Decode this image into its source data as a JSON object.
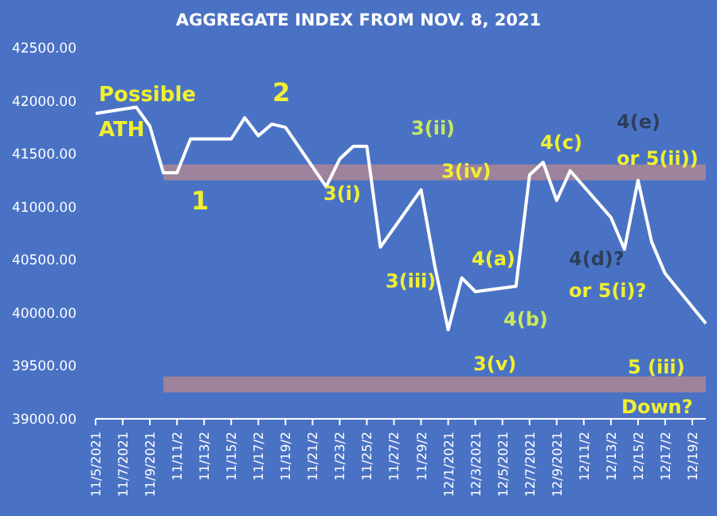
{
  "chart_data": {
    "type": "line",
    "title": "AGGREGATE INDEX FROM NOV. 8, 2021",
    "x": [
      "2021-11-05",
      "2021-11-08",
      "2021-11-09",
      "2021-11-10",
      "2021-11-11",
      "2021-11-12",
      "2021-11-15",
      "2021-11-16",
      "2021-11-17",
      "2021-11-18",
      "2021-11-19",
      "2021-11-22",
      "2021-11-23",
      "2021-11-24",
      "2021-11-25",
      "2021-11-26",
      "2021-11-29",
      "2021-11-30",
      "2021-12-01",
      "2021-12-02",
      "2021-12-03",
      "2021-12-06",
      "2021-12-07",
      "2021-12-08",
      "2021-12-09",
      "2021-12-10",
      "2021-12-13",
      "2021-12-14",
      "2021-12-15",
      "2021-12-16",
      "2021-12-17",
      "2021-12-20"
    ],
    "series": [
      {
        "color": "#ffffff",
        "values": [
          41880,
          41940,
          41760,
          41320,
          41320,
          41640,
          41640,
          41840,
          41670,
          41780,
          41750,
          41190,
          41450,
          41570,
          41570,
          40620,
          41160,
          40450,
          39840,
          40330,
          40200,
          40250,
          41300,
          41420,
          41060,
          41340,
          40900,
          40600,
          41250,
          40670,
          40370,
          39900
        ]
      }
    ],
    "xlim": [
      "2021-11-05",
      "2021-12-20"
    ],
    "xticks": [
      {
        "value": "2021-11-05",
        "label": "11/5/2021"
      },
      {
        "value": "2021-11-07",
        "label": "11/7/2021"
      },
      {
        "value": "2021-11-09",
        "label": "11/9/2021"
      },
      {
        "value": "2021-11-11",
        "label": "11/11/2"
      },
      {
        "value": "2021-11-13",
        "label": "11/13/2"
      },
      {
        "value": "2021-11-15",
        "label": "11/15/2"
      },
      {
        "value": "2021-11-17",
        "label": "11/17/2"
      },
      {
        "value": "2021-11-19",
        "label": "11/19/2"
      },
      {
        "value": "2021-11-21",
        "label": "11/21/2"
      },
      {
        "value": "2021-11-23",
        "label": "11/23/2"
      },
      {
        "value": "2021-11-25",
        "label": "11/25/2"
      },
      {
        "value": "2021-11-27",
        "label": "11/27/2"
      },
      {
        "value": "2021-11-29",
        "label": "11/29/2"
      },
      {
        "value": "2021-12-01",
        "label": "12/1/2021"
      },
      {
        "value": "2021-12-03",
        "label": "12/3/2021"
      },
      {
        "value": "2021-12-05",
        "label": "12/5/2021"
      },
      {
        "value": "2021-12-07",
        "label": "12/7/2021"
      },
      {
        "value": "2021-12-09",
        "label": "12/9/2021"
      },
      {
        "value": "2021-12-11",
        "label": "12/11/2"
      },
      {
        "value": "2021-12-13",
        "label": "12/13/2"
      },
      {
        "value": "2021-12-15",
        "label": "12/15/2"
      },
      {
        "value": "2021-12-17",
        "label": "12/17/2"
      },
      {
        "value": "2021-12-19",
        "label": "12/19/2"
      }
    ],
    "ylim": [
      39000,
      42500
    ],
    "yticks": [
      {
        "value": 39000,
        "label": "39000.00"
      },
      {
        "value": 39500,
        "label": "39500.00"
      },
      {
        "value": 40000,
        "label": "40000.00"
      },
      {
        "value": 40500,
        "label": "40500.00"
      },
      {
        "value": 41000,
        "label": "41000.00"
      },
      {
        "value": 41500,
        "label": "41500.00"
      },
      {
        "value": 42000,
        "label": "42000.00"
      },
      {
        "value": 42500,
        "label": "42500.00"
      }
    ],
    "bands": [
      {
        "axis": "y",
        "from": 41250,
        "to": 41400,
        "color": "#c08a8a"
      },
      {
        "axis": "y",
        "from": 39250,
        "to": 39400,
        "color": "#c08a8a"
      }
    ],
    "annotations": [
      "Possible",
      "ATH",
      "1",
      "2",
      "3(i)",
      "3(ii)",
      "3(iv)",
      "3(iii)",
      "4(a)",
      "4(b)",
      "3(v)",
      "4(c)",
      "4(d)?",
      "or 5(i)?",
      "4(e)",
      "or 5(ii))",
      "5 (iii)",
      "Down?"
    ]
  }
}
